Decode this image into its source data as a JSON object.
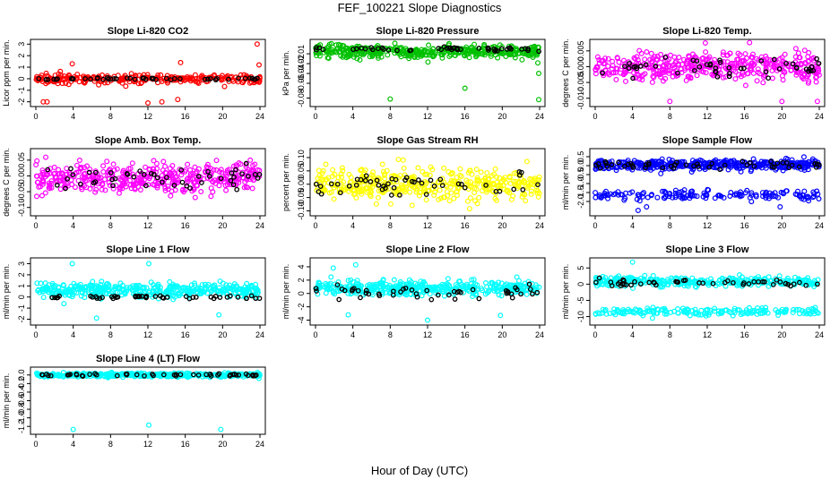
{
  "figure": {
    "title": "FEF_100221  Slope Diagnostics",
    "xlabel": "Hour of Day (UTC)"
  },
  "chart_data": [
    {
      "type": "scatter",
      "title": "Slope Li-820 CO2",
      "ylabel": "Licor ppm per min.",
      "color": "#ff0000",
      "xlim": [
        0,
        24
      ],
      "ylim": [
        -2.1,
        3.1
      ],
      "xticks": [
        0,
        4,
        8,
        12,
        16,
        20,
        24
      ],
      "yticks": [
        -2,
        -1,
        0,
        1,
        2,
        3
      ],
      "ytick_labels": [
        "-2",
        "-1",
        "0",
        "1",
        "2",
        "3"
      ],
      "series": [
        {
          "role": "minute",
          "center": 0.0,
          "spread": 0.35,
          "n": 260,
          "outliers": [
            [
              0.8,
              -2.0
            ],
            [
              1.2,
              -2.0
            ],
            [
              12.0,
              -2.1
            ],
            [
              13.5,
              -2.0
            ],
            [
              15.2,
              -1.8
            ],
            [
              23.7,
              3.0
            ],
            [
              15.5,
              1.4
            ],
            [
              3.9,
              1.3
            ],
            [
              23.9,
              1.2
            ]
          ]
        },
        {
          "role": "hourly",
          "center": 0.0,
          "spread": 0.08,
          "n": 48
        }
      ]
    },
    {
      "type": "scatter",
      "title": "Slope Li-820 Pressure",
      "ylabel": "kPa per min.",
      "color": "#00c000",
      "xlim": [
        0,
        24
      ],
      "ylim": [
        -0.09,
        0.032
      ],
      "xticks": [
        0,
        4,
        8,
        12,
        16,
        20,
        24
      ],
      "yticks": [
        -0.08,
        -0.06,
        -0.04,
        -0.02,
        -0.01
      ],
      "ytick_labels": [
        "-0.08",
        "-0.06",
        "-0.04",
        "-0.02",
        "-0.01"
      ],
      "ytick_positions": [
        -0.08,
        -0.05,
        -0.03,
        -0.01,
        0.01
      ],
      "series": [
        {
          "role": "minute",
          "center": 0.015,
          "spread": 0.012,
          "n": 420,
          "outliers": [
            [
              8.0,
              -0.082
            ],
            [
              16.0,
              -0.06
            ],
            [
              23.9,
              -0.083
            ],
            [
              23.9,
              -0.03
            ],
            [
              1.5,
              0.029
            ],
            [
              17.0,
              0.029
            ]
          ]
        },
        {
          "role": "hourly",
          "center": 0.02,
          "spread": 0.004,
          "n": 48
        }
      ]
    },
    {
      "type": "scatter",
      "title": "Slope Li-820 Temp.",
      "ylabel": "degrees C per min.",
      "color": "#ff00ff",
      "xlim": [
        0,
        24
      ],
      "ylim": [
        -0.0115,
        0.0075
      ],
      "xticks": [
        0,
        4,
        8,
        12,
        16,
        20,
        24
      ],
      "yticks": [
        -0.01,
        -0.005,
        0.0,
        0.005
      ],
      "ytick_labels": [
        "-0.010",
        "-0.005",
        "0.000",
        "0.005"
      ],
      "series": [
        {
          "role": "minute",
          "center": 0.0,
          "spread": 0.004,
          "n": 420,
          "outliers": [
            [
              8.0,
              -0.011
            ],
            [
              11.8,
              0.0075
            ],
            [
              20.0,
              -0.011
            ],
            [
              23.8,
              -0.011
            ]
          ]
        },
        {
          "role": "hourly",
          "center": 0.0,
          "spread": 0.003,
          "n": 48
        }
      ]
    },
    {
      "type": "scatter",
      "title": "Slope Amb. Box Temp.",
      "ylabel": "degrees C per min.",
      "color": "#ff00ff",
      "xlim": [
        0,
        24
      ],
      "ylim": [
        -0.115,
        0.075
      ],
      "xticks": [
        0,
        4,
        8,
        12,
        16,
        20,
        24
      ],
      "yticks": [
        -0.1,
        -0.05,
        0.0,
        0.05
      ],
      "ytick_labels": [
        "-0.10",
        "-0.05",
        "0.00",
        "0.05"
      ],
      "series": [
        {
          "role": "minute",
          "center": -0.005,
          "spread": 0.045,
          "n": 420,
          "outliers": []
        },
        {
          "role": "hourly",
          "center": -0.01,
          "spread": 0.035,
          "n": 48
        }
      ]
    },
    {
      "type": "scatter",
      "title": "Slope Gas Stream RH",
      "ylabel": "percent per min.",
      "color": "#ffff00",
      "xlim": [
        0,
        24
      ],
      "ylim": [
        -0.105,
        0.12
      ],
      "xticks": [
        0,
        4,
        8,
        12,
        16,
        20,
        24
      ],
      "yticks": [
        -0.1,
        -0.05,
        0.0,
        0.05,
        0.1
      ],
      "ytick_labels": [
        "-0.10",
        "-0.05",
        "0.00",
        "0.05",
        "0.10"
      ],
      "series": [
        {
          "role": "minute",
          "center": 0.0,
          "spread": 0.05,
          "n": 420,
          "outliers": []
        },
        {
          "role": "hourly",
          "center": 0.0,
          "spread": 0.04,
          "n": 48
        }
      ]
    },
    {
      "type": "scatter",
      "title": "Slope Sample Flow",
      "ylabel": "ml/min per min.",
      "color": "#0000ff",
      "xlim": [
        0,
        24
      ],
      "ylim": [
        -2.6,
        0.75
      ],
      "xticks": [
        0,
        4,
        8,
        12,
        16,
        20,
        24
      ],
      "yticks": [
        -2.0,
        -1.5,
        -1.0,
        -0.5,
        0.0,
        0.5
      ],
      "ytick_labels": [
        "-2.0",
        "-1.5",
        "-1.0",
        "-0.5",
        "0.0",
        "0.5"
      ],
      "series": [
        {
          "role": "minute",
          "center": 0.05,
          "spread": 0.25,
          "n": 400,
          "outliers": []
        },
        {
          "role": "minute",
          "center": -1.65,
          "spread": 0.25,
          "n": 150,
          "outliers": [
            [
              4.6,
              -2.5
            ],
            [
              5.5,
              -2.3
            ],
            [
              19.8,
              -2.3
            ]
          ]
        },
        {
          "role": "hourly",
          "center": 0.05,
          "spread": 0.22,
          "n": 48
        }
      ]
    },
    {
      "type": "scatter",
      "title": "Slope Line 1 Flow",
      "ylabel": "ml/min per min.",
      "color": "#00ffff",
      "xlim": [
        0,
        24
      ],
      "ylim": [
        -2.2,
        3.2
      ],
      "xticks": [
        0,
        4,
        8,
        12,
        16,
        20,
        24
      ],
      "yticks": [
        -2,
        -1,
        0,
        1,
        2,
        3
      ],
      "ytick_labels": [
        "-2",
        "-1",
        "0",
        "1",
        "2",
        "3"
      ],
      "series": [
        {
          "role": "minute",
          "center": 0.6,
          "spread": 0.6,
          "n": 400,
          "outliers": [
            [
              3.9,
              3.0
            ],
            [
              12.1,
              3.0
            ],
            [
              6.5,
              -1.9
            ],
            [
              19.6,
              -1.6
            ],
            [
              3.0,
              -0.6
            ]
          ]
        },
        {
          "role": "hourly",
          "center": 0.0,
          "spread": 0.12,
          "n": 48
        }
      ]
    },
    {
      "type": "scatter",
      "title": "Slope Line 2 Flow",
      "ylabel": "ml/min per min.",
      "color": "#00ffff",
      "xlim": [
        0,
        24
      ],
      "ylim": [
        -4.2,
        4.8
      ],
      "xticks": [
        0,
        4,
        8,
        12,
        16,
        20,
        24
      ],
      "yticks": [
        -4,
        -2,
        0,
        2,
        4
      ],
      "ytick_labels": [
        "-4",
        "-2",
        "0",
        "2",
        "4"
      ],
      "series": [
        {
          "role": "minute",
          "center": 0.8,
          "spread": 1.0,
          "n": 400,
          "outliers": [
            [
              4.3,
              4.3
            ],
            [
              1.9,
              3.8
            ],
            [
              12.0,
              -4.0
            ],
            [
              3.5,
              -3.2
            ],
            [
              19.8,
              -3.3
            ]
          ]
        },
        {
          "role": "hourly",
          "center": 0.2,
          "spread": 0.9,
          "n": 48
        }
      ]
    },
    {
      "type": "scatter",
      "title": "Slope Line 3 Flow",
      "ylabel": "ml/min per min.",
      "color": "#00ffff",
      "xlim": [
        0,
        24
      ],
      "ylim": [
        -11.5,
        7.0
      ],
      "xticks": [
        0,
        4,
        8,
        12,
        16,
        20,
        24
      ],
      "yticks": [
        -10,
        -5,
        0,
        5
      ],
      "ytick_labels": [
        "-10",
        "-5",
        "0",
        "5"
      ],
      "series": [
        {
          "role": "minute",
          "center": 0.8,
          "spread": 1.3,
          "n": 330,
          "outliers": [
            [
              4.0,
              6.8
            ]
          ]
        },
        {
          "role": "minute",
          "center": -8.5,
          "spread": 1.1,
          "n": 180,
          "outliers": []
        },
        {
          "role": "hourly",
          "center": 0.5,
          "spread": 1.0,
          "n": 48
        }
      ]
    },
    {
      "type": "scatter",
      "title": "Slope Line 4 (LT) Flow",
      "ylabel": "ml/min per min.",
      "color": "#00ffff",
      "xlim": [
        0,
        24
      ],
      "ylim": [
        -1.3,
        0.1
      ],
      "xticks": [
        0,
        4,
        8,
        12,
        16,
        20,
        24
      ],
      "yticks": [
        -1.2,
        -1.0,
        -0.8,
        -0.6,
        -0.4,
        -0.2,
        0.0
      ],
      "ytick_labels": [
        "-1.2",
        "-1.0",
        "-0.8",
        "-0.6",
        "-0.4",
        "-0.2",
        "0.0"
      ],
      "series": [
        {
          "role": "minute",
          "center": 0.0,
          "spread": 0.04,
          "n": 420,
          "outliers": [
            [
              4.0,
              -1.27
            ],
            [
              12.1,
              -1.17
            ],
            [
              19.8,
              -1.27
            ]
          ]
        },
        {
          "role": "hourly",
          "center": 0.0,
          "spread": 0.03,
          "n": 48
        }
      ]
    }
  ]
}
